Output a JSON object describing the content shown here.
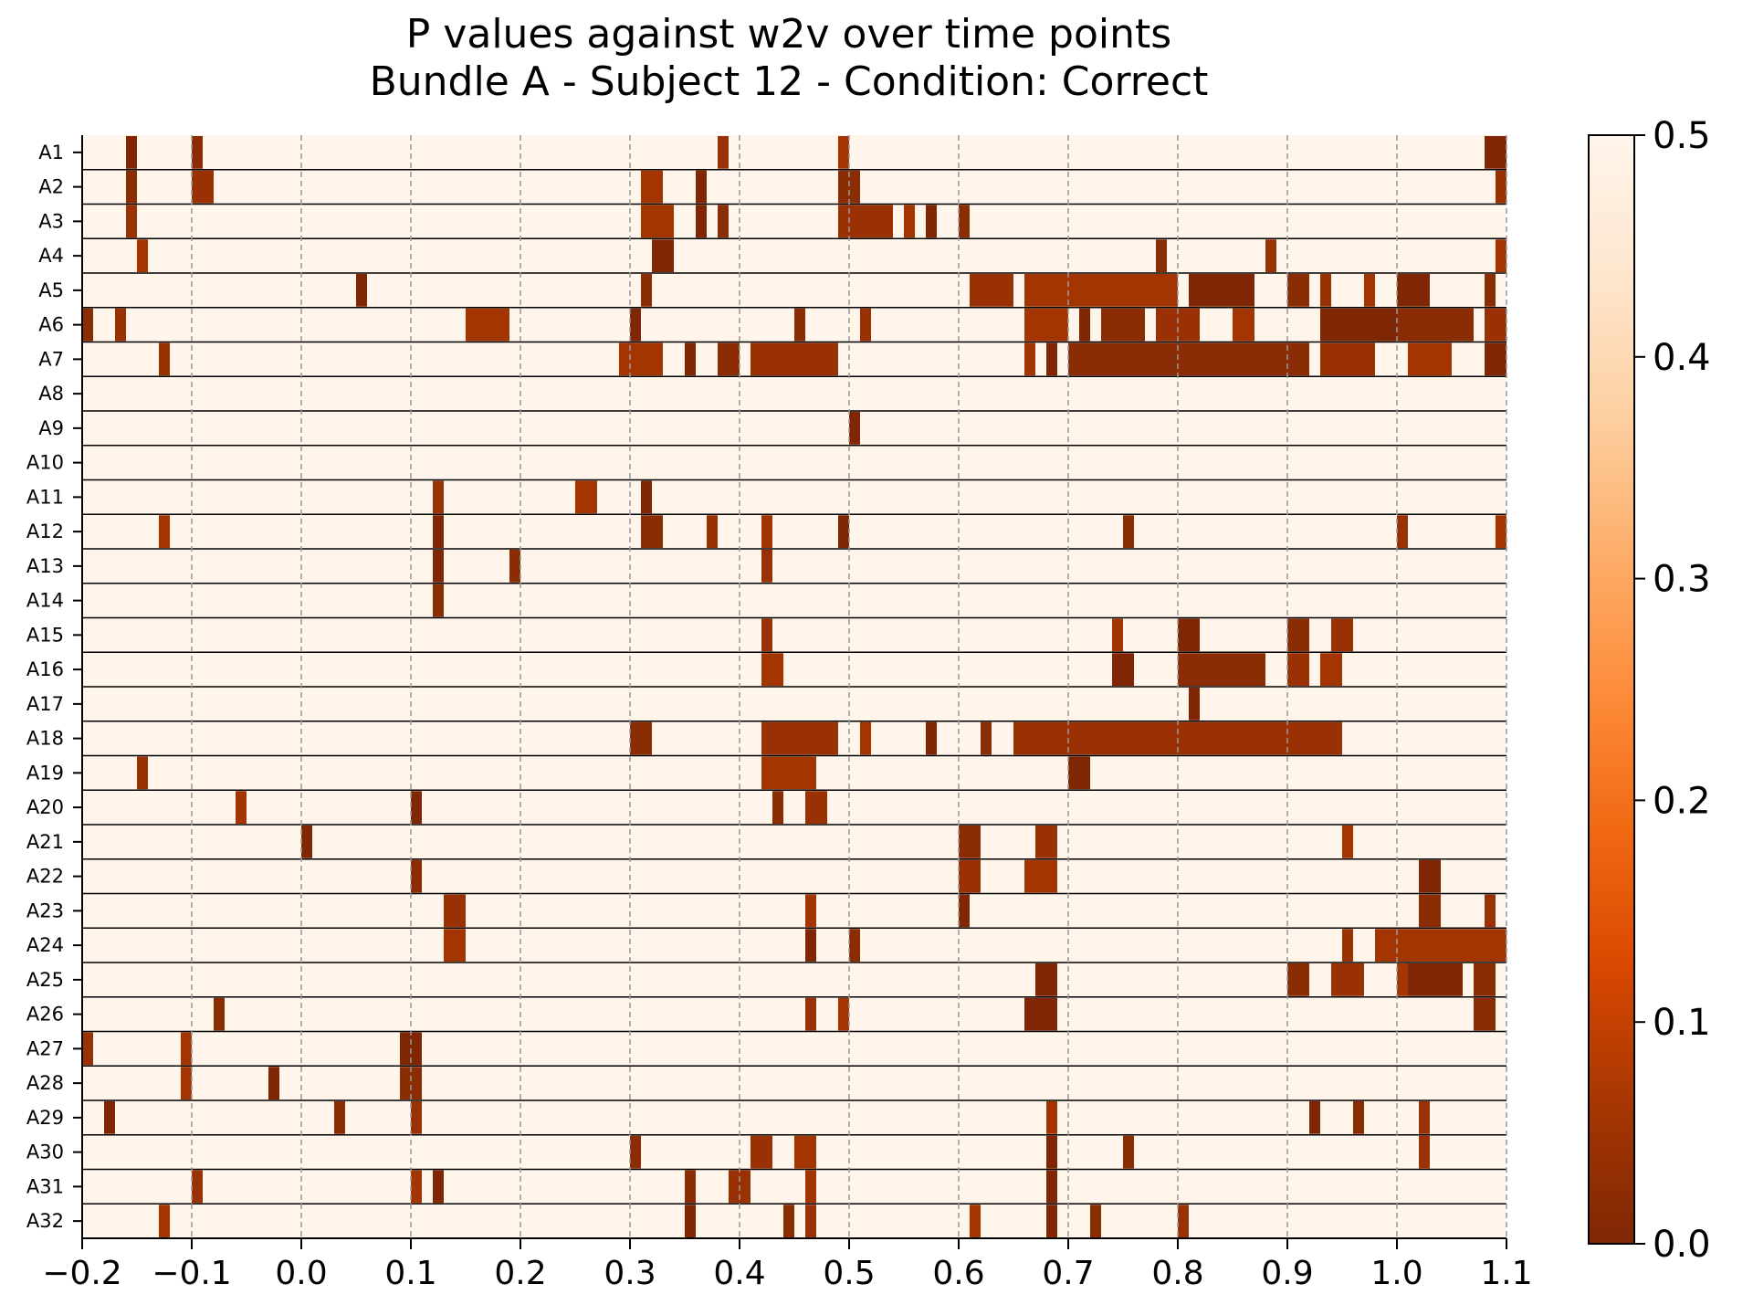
{
  "chart_data": {
    "type": "heatmap",
    "title": "P values against w2v over time points",
    "subtitle": "Bundle A - Subject 12 - Condition: Correct",
    "xlabel": "",
    "ylabel": "",
    "xlim": [
      -0.2,
      1.1
    ],
    "x_ticks": [
      "−0.2",
      "−0.1",
      "0.0",
      "0.1",
      "0.2",
      "0.3",
      "0.4",
      "0.5",
      "0.6",
      "0.7",
      "0.8",
      "0.9",
      "1.0",
      "1.1"
    ],
    "grid": "vertical dashed at each 0.1",
    "colormap": "Oranges_r",
    "colorbar": {
      "range": [
        0.0,
        0.5
      ],
      "ticks": [
        "0.0",
        "0.1",
        "0.2",
        "0.3",
        "0.4",
        "0.5"
      ],
      "placement": "right"
    },
    "rows": [
      {
        "label": "A1",
        "significant": [
          [
            -0.16,
            -0.15
          ],
          [
            -0.1,
            -0.09
          ],
          [
            0.38,
            0.39
          ],
          [
            0.49,
            0.5
          ],
          [
            1.08,
            1.1
          ]
        ]
      },
      {
        "label": "A2",
        "significant": [
          [
            -0.16,
            -0.15
          ],
          [
            -0.1,
            -0.08
          ],
          [
            0.31,
            0.33
          ],
          [
            0.36,
            0.37
          ],
          [
            0.49,
            0.51
          ],
          [
            1.09,
            1.1
          ]
        ]
      },
      {
        "label": "A3",
        "significant": [
          [
            -0.16,
            -0.15
          ],
          [
            0.31,
            0.34
          ],
          [
            0.36,
            0.37
          ],
          [
            0.38,
            0.39
          ],
          [
            0.49,
            0.54
          ],
          [
            0.55,
            0.56
          ],
          [
            0.57,
            0.58
          ],
          [
            0.6,
            0.61
          ]
        ]
      },
      {
        "label": "A4",
        "significant": [
          [
            -0.15,
            -0.14
          ],
          [
            0.32,
            0.34
          ],
          [
            0.78,
            0.79
          ],
          [
            0.88,
            0.89
          ],
          [
            1.09,
            1.1
          ]
        ]
      },
      {
        "label": "A5",
        "significant": [
          [
            0.05,
            0.06
          ],
          [
            0.31,
            0.32
          ],
          [
            0.61,
            0.65
          ],
          [
            0.66,
            0.8
          ],
          [
            0.81,
            0.87
          ],
          [
            0.9,
            0.92
          ],
          [
            0.93,
            0.94
          ],
          [
            0.97,
            0.98
          ],
          [
            1.0,
            1.03
          ],
          [
            1.08,
            1.09
          ]
        ]
      },
      {
        "label": "A6",
        "significant": [
          [
            -0.2,
            -0.19
          ],
          [
            -0.17,
            -0.16
          ],
          [
            0.15,
            0.19
          ],
          [
            0.3,
            0.31
          ],
          [
            0.45,
            0.46
          ],
          [
            0.51,
            0.52
          ],
          [
            0.66,
            0.7
          ],
          [
            0.71,
            0.72
          ],
          [
            0.73,
            0.77
          ],
          [
            0.78,
            0.82
          ],
          [
            0.85,
            0.87
          ],
          [
            0.93,
            1.0
          ],
          [
            1.0,
            1.07
          ],
          [
            1.08,
            1.1
          ]
        ]
      },
      {
        "label": "A7",
        "significant": [
          [
            -0.13,
            -0.12
          ],
          [
            0.29,
            0.33
          ],
          [
            0.35,
            0.36
          ],
          [
            0.38,
            0.4
          ],
          [
            0.41,
            0.49
          ],
          [
            0.66,
            0.67
          ],
          [
            0.68,
            0.69
          ],
          [
            0.7,
            0.92
          ],
          [
            0.93,
            0.98
          ],
          [
            1.01,
            1.05
          ],
          [
            1.08,
            1.1
          ]
        ]
      },
      {
        "label": "A8",
        "significant": []
      },
      {
        "label": "A9",
        "significant": [
          [
            0.5,
            0.51
          ]
        ]
      },
      {
        "label": "A10",
        "significant": []
      },
      {
        "label": "A11",
        "significant": [
          [
            0.12,
            0.13
          ],
          [
            0.25,
            0.27
          ],
          [
            0.31,
            0.32
          ]
        ]
      },
      {
        "label": "A12",
        "significant": [
          [
            -0.13,
            -0.12
          ],
          [
            0.12,
            0.13
          ],
          [
            0.31,
            0.33
          ],
          [
            0.37,
            0.38
          ],
          [
            0.42,
            0.43
          ],
          [
            0.49,
            0.5
          ],
          [
            0.75,
            0.76
          ],
          [
            1.0,
            1.01
          ],
          [
            1.09,
            1.1
          ]
        ]
      },
      {
        "label": "A13",
        "significant": [
          [
            0.12,
            0.13
          ],
          [
            0.19,
            0.2
          ],
          [
            0.42,
            0.43
          ]
        ]
      },
      {
        "label": "A14",
        "significant": [
          [
            0.12,
            0.13
          ]
        ]
      },
      {
        "label": "A15",
        "significant": [
          [
            0.42,
            0.43
          ],
          [
            0.74,
            0.75
          ],
          [
            0.8,
            0.82
          ],
          [
            0.9,
            0.92
          ],
          [
            0.94,
            0.96
          ]
        ]
      },
      {
        "label": "A16",
        "significant": [
          [
            0.42,
            0.44
          ],
          [
            0.74,
            0.76
          ],
          [
            0.8,
            0.88
          ],
          [
            0.9,
            0.92
          ],
          [
            0.93,
            0.95
          ]
        ]
      },
      {
        "label": "A17",
        "significant": [
          [
            0.81,
            0.82
          ]
        ]
      },
      {
        "label": "A18",
        "significant": [
          [
            0.3,
            0.32
          ],
          [
            0.42,
            0.49
          ],
          [
            0.51,
            0.52
          ],
          [
            0.57,
            0.58
          ],
          [
            0.62,
            0.63
          ],
          [
            0.65,
            0.95
          ]
        ]
      },
      {
        "label": "A19",
        "significant": [
          [
            -0.15,
            -0.14
          ],
          [
            0.42,
            0.47
          ],
          [
            0.7,
            0.72
          ]
        ]
      },
      {
        "label": "A20",
        "significant": [
          [
            -0.06,
            -0.05
          ],
          [
            0.1,
            0.11
          ],
          [
            0.43,
            0.44
          ],
          [
            0.46,
            0.48
          ]
        ]
      },
      {
        "label": "A21",
        "significant": [
          [
            0.0,
            0.01
          ],
          [
            0.6,
            0.62
          ],
          [
            0.67,
            0.69
          ],
          [
            0.95,
            0.96
          ]
        ]
      },
      {
        "label": "A22",
        "significant": [
          [
            0.1,
            0.11
          ],
          [
            0.6,
            0.62
          ],
          [
            0.66,
            0.69
          ],
          [
            1.02,
            1.04
          ]
        ]
      },
      {
        "label": "A23",
        "significant": [
          [
            0.13,
            0.15
          ],
          [
            0.46,
            0.47
          ],
          [
            0.6,
            0.61
          ],
          [
            1.02,
            1.04
          ],
          [
            1.08,
            1.09
          ]
        ]
      },
      {
        "label": "A24",
        "significant": [
          [
            0.13,
            0.15
          ],
          [
            0.46,
            0.47
          ],
          [
            0.5,
            0.51
          ],
          [
            0.95,
            0.96
          ],
          [
            0.98,
            1.1
          ]
        ]
      },
      {
        "label": "A25",
        "significant": [
          [
            0.67,
            0.69
          ],
          [
            0.9,
            0.92
          ],
          [
            0.94,
            0.97
          ],
          [
            1.0,
            1.01
          ],
          [
            1.01,
            1.06
          ],
          [
            1.07,
            1.09
          ]
        ]
      },
      {
        "label": "A26",
        "significant": [
          [
            -0.08,
            -0.07
          ],
          [
            0.46,
            0.47
          ],
          [
            0.49,
            0.5
          ],
          [
            0.66,
            0.69
          ],
          [
            1.07,
            1.09
          ]
        ]
      },
      {
        "label": "A27",
        "significant": [
          [
            -0.2,
            -0.19
          ],
          [
            -0.11,
            -0.1
          ],
          [
            0.09,
            0.11
          ]
        ]
      },
      {
        "label": "A28",
        "significant": [
          [
            -0.11,
            -0.1
          ],
          [
            -0.03,
            -0.02
          ],
          [
            0.09,
            0.11
          ]
        ]
      },
      {
        "label": "A29",
        "significant": [
          [
            -0.18,
            -0.17
          ],
          [
            0.03,
            0.04
          ],
          [
            0.1,
            0.11
          ],
          [
            0.68,
            0.69
          ],
          [
            0.92,
            0.93
          ],
          [
            0.96,
            0.97
          ],
          [
            1.02,
            1.03
          ]
        ]
      },
      {
        "label": "A30",
        "significant": [
          [
            0.3,
            0.31
          ],
          [
            0.41,
            0.43
          ],
          [
            0.45,
            0.47
          ],
          [
            0.68,
            0.69
          ],
          [
            0.75,
            0.76
          ],
          [
            1.02,
            1.03
          ]
        ]
      },
      {
        "label": "A31",
        "significant": [
          [
            -0.1,
            -0.09
          ],
          [
            0.1,
            0.11
          ],
          [
            0.12,
            0.13
          ],
          [
            0.35,
            0.36
          ],
          [
            0.39,
            0.41
          ],
          [
            0.46,
            0.47
          ],
          [
            0.68,
            0.69
          ]
        ]
      },
      {
        "label": "A32",
        "significant": [
          [
            -0.13,
            -0.12
          ],
          [
            0.35,
            0.36
          ],
          [
            0.44,
            0.45
          ],
          [
            0.46,
            0.47
          ],
          [
            0.61,
            0.62
          ],
          [
            0.68,
            0.69
          ],
          [
            0.72,
            0.73
          ],
          [
            0.8,
            0.81
          ]
        ]
      }
    ]
  }
}
